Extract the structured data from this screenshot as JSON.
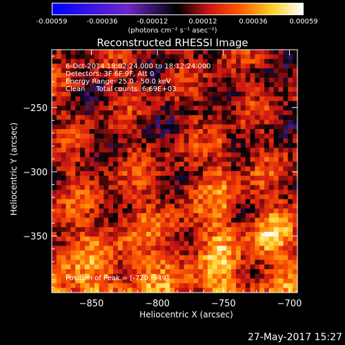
{
  "colorbar": {
    "ticks": [
      "-0.00059",
      "-0.00036",
      "-0.00012",
      "0.00012",
      "0.00036",
      "0.00059"
    ],
    "units": "(photons cm⁻² s⁻¹ asec⁻²)"
  },
  "annotations": {
    "line1": "6-Oct-2014 18:02:24.000 to 18:12:24.000",
    "line2": "Detectors: 3F 6F 9F, Att 0",
    "line3": "Energy Range: 25.0 - 50.0 keV",
    "line4": "Clean     Total counts: 6.69E+03",
    "peak": "Position of Peak = [-720,-349]"
  },
  "timestamp": "27-May-2017 15:27",
  "chart_data": {
    "type": "heatmap",
    "title": "Reconstructed RHESSI Image",
    "xlabel": "Heliocentric X (arcsec)",
    "ylabel": "Heliocentric Y (arcsec)",
    "xlim": [
      -880,
      -694
    ],
    "ylim": [
      -394,
      -205
    ],
    "xticks": [
      -850,
      -800,
      -750,
      -700
    ],
    "yticks": [
      -250,
      -300,
      -350
    ],
    "xtick_labels": [
      "−850",
      "−800",
      "−750",
      "−700"
    ],
    "ytick_labels": [
      "−250",
      "−300",
      "−350"
    ],
    "zlim": [
      -0.00059,
      0.00059
    ],
    "peak_position": [
      -720,
      -349
    ],
    "colors": {
      "frame": "#ffffff",
      "background": "#000000"
    }
  }
}
